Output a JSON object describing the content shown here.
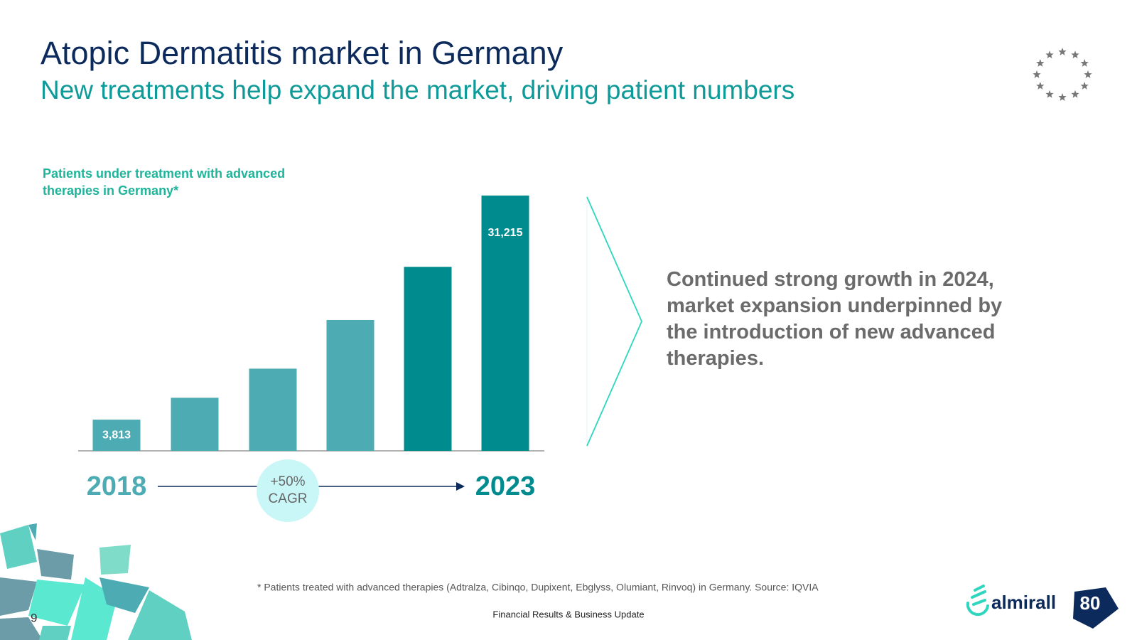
{
  "header": {
    "title": "Atopic Dermatitis market in Germany",
    "subtitle": "New treatments help expand the market, driving patient numbers"
  },
  "chart_data": {
    "type": "bar",
    "title": "Patients under treatment with advanced therapies in Germany*",
    "categories": [
      "2018",
      null,
      null,
      null,
      null,
      "2023"
    ],
    "values": [
      3813,
      6490,
      10050,
      16000,
      22500,
      31215
    ],
    "value_labels": [
      "3,813",
      null,
      null,
      null,
      null,
      "31,215"
    ],
    "colors": [
      "#4dacb3",
      "#4dacb3",
      "#4dacb3",
      "#4dacb3",
      "#008b8f",
      "#008b8f"
    ],
    "annotation": {
      "value": "+50%",
      "label": "CAGR"
    }
  },
  "note": "Continued strong growth in 2024, market expansion underpinned by the introduction of new advanced therapies.",
  "footnote": "* Patients treated with advanced therapies (Adtralza, Cibinqo, Dupixent, Ebglyss, Olumiant, Rinvoq) in Germany. Source: IQVIA",
  "footer": {
    "text": "Financial Results & Business Update",
    "page": "9",
    "logo": "almirall",
    "badge": "80"
  }
}
